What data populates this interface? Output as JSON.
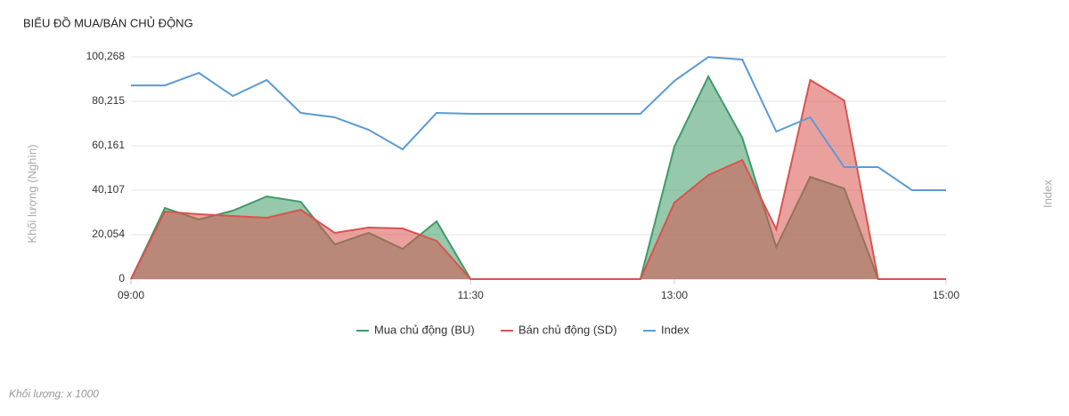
{
  "chart_data": {
    "type": "area",
    "title": "BIỂU ĐỒ MUA/BÁN CHỦ ĐỘNG",
    "y_label": "Khối lượng (Nghìn)",
    "y2_label": "Index",
    "footnote": "Khối lượng: x 1000",
    "categories": [
      "09:00",
      null,
      null,
      null,
      null,
      null,
      null,
      null,
      null,
      null,
      "11:30",
      null,
      null,
      null,
      null,
      null,
      "13:00",
      null,
      null,
      null,
      null,
      null,
      null,
      null,
      "15:00"
    ],
    "ylim": [
      0,
      100268
    ],
    "yticks": [
      0,
      {
        "value": 20054,
        "label": "20,054"
      },
      {
        "value": 40107,
        "label": "40,107"
      },
      {
        "value": 60161,
        "label": "60,161"
      },
      {
        "value": 80215,
        "label": "80,215"
      },
      {
        "value": 100268,
        "label": "100,268"
      }
    ],
    "grid": true,
    "legend": "bottom",
    "series": [
      {
        "name": "Mua chủ động (BU)",
        "color": "#3f9a67",
        "values": [
          0,
          32080,
          26870,
          30880,
          37300,
          34890,
          15640,
          20860,
          13640,
          26070,
          0,
          0,
          0,
          0,
          0,
          0,
          59760,
          91440,
          63770,
          14440,
          46120,
          40910,
          0,
          0,
          0
        ]
      },
      {
        "name": "Bán chủ động (SD)",
        "color": "#d9534f",
        "values": [
          0,
          30480,
          29280,
          28480,
          27670,
          31280,
          20860,
          23260,
          22860,
          17250,
          0,
          0,
          0,
          0,
          0,
          0,
          34490,
          46920,
          53740,
          22460,
          89840,
          80610,
          0,
          0,
          0
        ]
      },
      {
        "name": "Index",
        "color": "#5b9bd5",
        "line": true,
        "values": [
          87400,
          87400,
          93050,
          82620,
          89840,
          75000,
          73000,
          67380,
          58560,
          75000,
          74600,
          74600,
          74600,
          74600,
          74600,
          74600,
          89440,
          100200,
          99060,
          66580,
          73000,
          50530,
          50530,
          40100,
          40100
        ]
      }
    ]
  }
}
